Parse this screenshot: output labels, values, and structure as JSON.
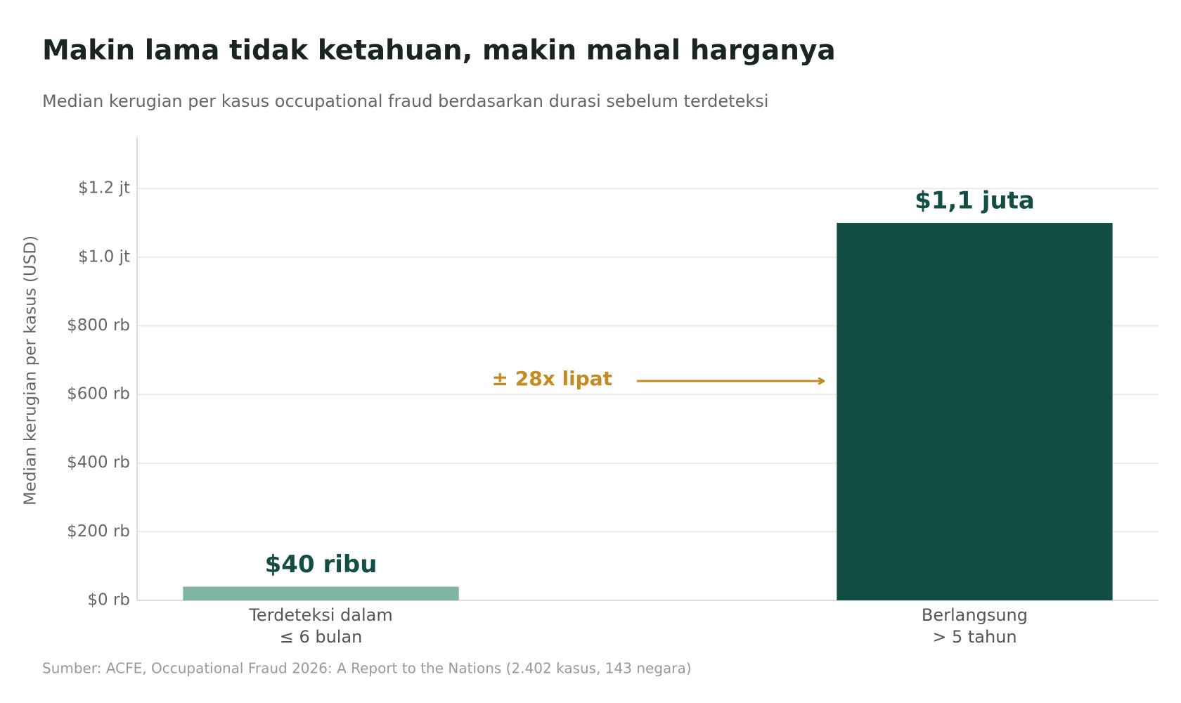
{
  "chart_data": {
    "type": "bar",
    "title": "Makin lama tidak ketahuan, makin mahal harganya",
    "subtitle": "Median kerugian per kasus occupational fraud berdasarkan durasi sebelum terdeteksi",
    "y_label": "Median kerugian per kasus (USD)",
    "categories": [
      [
        "Terdeteksi dalam",
        "≤ 6 bulan"
      ],
      [
        "Berlangsung",
        "> 5 tahun"
      ]
    ],
    "values": [
      40000,
      1100000
    ],
    "value_labels": [
      "$40 ribu",
      "$1,1 juta"
    ],
    "colors": [
      "#7fb5a5",
      "#114e43"
    ],
    "ylim": [
      0,
      1350000
    ],
    "yticks": [
      {
        "value": 0,
        "label": "$0 rb"
      },
      {
        "value": 200000,
        "label": "$200 rb"
      },
      {
        "value": 400000,
        "label": "$400 rb"
      },
      {
        "value": 600000,
        "label": "$600 rb"
      },
      {
        "value": 800000,
        "label": "$800 rb"
      },
      {
        "value": 1000000,
        "label": "$1.0 jt"
      },
      {
        "value": 1200000,
        "label": "$1.2 jt"
      }
    ],
    "grid": true,
    "annotation": "± 28x lipat",
    "source": "Sumber: ACFE, Occupational Fraud 2026: A Report to the Nations (2.402 kasus, 143 negara)"
  }
}
